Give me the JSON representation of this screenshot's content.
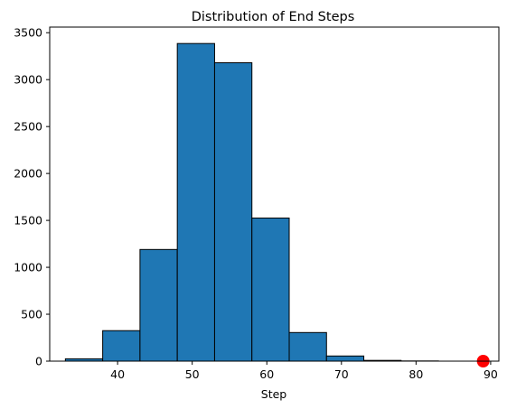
{
  "chart_data": {
    "type": "bar",
    "title": "Distribution of End Steps",
    "xlabel": "Step",
    "ylabel": "",
    "xlim": [
      30.9,
      91.1
    ],
    "ylim": [
      0,
      3560
    ],
    "xticks": [
      40,
      50,
      60,
      70,
      80,
      90
    ],
    "yticks": [
      0,
      500,
      1000,
      1500,
      2000,
      2500,
      3000,
      3500
    ],
    "bins": [
      {
        "start": 33,
        "end": 38,
        "value": 25
      },
      {
        "start": 38,
        "end": 43,
        "value": 325
      },
      {
        "start": 43,
        "end": 48,
        "value": 1190
      },
      {
        "start": 48,
        "end": 53,
        "value": 3385
      },
      {
        "start": 53,
        "end": 58,
        "value": 3180
      },
      {
        "start": 58,
        "end": 63,
        "value": 1525
      },
      {
        "start": 63,
        "end": 68,
        "value": 305
      },
      {
        "start": 68,
        "end": 73,
        "value": 55
      },
      {
        "start": 73,
        "end": 78,
        "value": 8
      },
      {
        "start": 78,
        "end": 83,
        "value": 2
      },
      {
        "start": 83,
        "end": 88,
        "value": 0
      }
    ],
    "marker": {
      "x": 89,
      "y": 0,
      "color": "#ff0000"
    },
    "grid": false,
    "colors": {
      "bar_fill": "#1f77b4",
      "bar_edge": "#000000"
    }
  }
}
